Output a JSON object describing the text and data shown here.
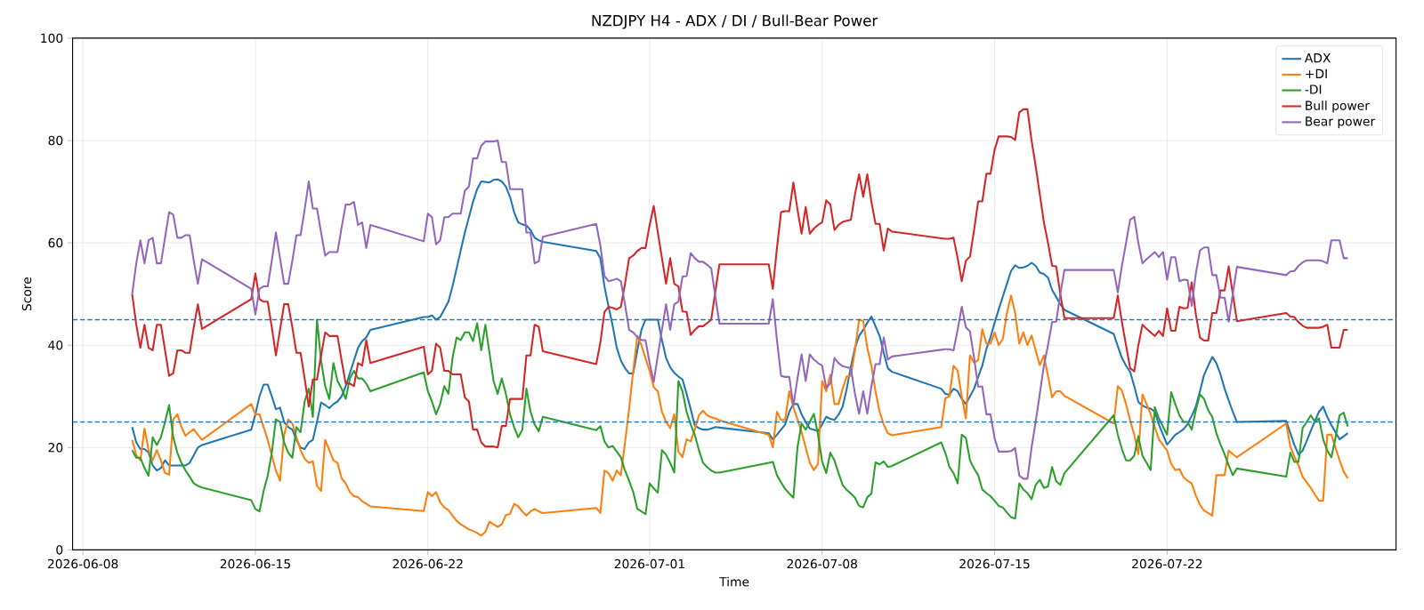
{
  "chart_data": {
    "type": "line",
    "title": "NZDJPY H4 - ADX / DI / Bull-Bear Power",
    "xlabel": "Time",
    "ylabel": "Score",
    "xlim": [
      "2026-06-07T14:00",
      "2026-07-31T07:00"
    ],
    "ylim": [
      0,
      100
    ],
    "xticks": [
      "2026-06-08",
      "2026-06-15",
      "2026-06-22",
      "2026-07-01",
      "2026-07-08",
      "2026-07-15",
      "2026-07-22"
    ],
    "yticks": [
      0,
      20,
      40,
      60,
      80,
      100
    ],
    "grid": true,
    "legend": "top right",
    "line_style": "solid",
    "x": [
      "2026-06-10T00:00",
      "2026-06-10T04:00",
      "2026-06-10T08:00",
      "2026-06-10T12:00",
      "2026-06-10T16:00",
      "2026-06-10T20:00",
      "2026-06-11T00:00",
      "2026-06-11T04:00",
      "2026-06-11T08:00",
      "2026-06-11T12:00",
      "2026-06-11T16:00",
      "2026-06-11T20:00",
      "2026-06-12T00:00",
      "2026-06-12T04:00",
      "2026-06-12T08:00",
      "2026-06-12T12:00",
      "2026-06-12T16:00",
      "2026-06-12T20:00",
      "2026-06-14T20:00",
      "2026-06-15T00:00",
      "2026-06-15T04:00",
      "2026-06-15T08:00",
      "2026-06-15T12:00",
      "2026-06-15T16:00",
      "2026-06-15T20:00",
      "2026-06-16T00:00",
      "2026-06-16T04:00",
      "2026-06-16T08:00",
      "2026-06-16T12:00",
      "2026-06-16T16:00",
      "2026-06-16T20:00",
      "2026-06-17T00:00",
      "2026-06-17T04:00",
      "2026-06-17T08:00",
      "2026-06-17T12:00",
      "2026-06-17T16:00",
      "2026-06-17T20:00",
      "2026-06-18T00:00",
      "2026-06-18T04:00",
      "2026-06-18T08:00",
      "2026-06-18T12:00",
      "2026-06-18T16:00",
      "2026-06-18T20:00",
      "2026-06-19T00:00",
      "2026-06-19T04:00",
      "2026-06-19T08:00",
      "2026-06-19T12:00",
      "2026-06-19T16:00",
      "2026-06-21T20:00",
      "2026-06-22T00:00",
      "2026-06-22T04:00",
      "2026-06-22T08:00",
      "2026-06-22T12:00",
      "2026-06-22T16:00",
      "2026-06-22T20:00",
      "2026-06-23T00:00",
      "2026-06-23T04:00",
      "2026-06-23T08:00",
      "2026-06-23T12:00",
      "2026-06-23T16:00",
      "2026-06-23T20:00",
      "2026-06-24T00:00",
      "2026-06-24T04:00",
      "2026-06-24T08:00",
      "2026-06-24T12:00",
      "2026-06-24T16:00",
      "2026-06-24T20:00",
      "2026-06-25T00:00",
      "2026-06-25T04:00",
      "2026-06-25T08:00",
      "2026-06-25T12:00",
      "2026-06-25T16:00",
      "2026-06-25T20:00",
      "2026-06-26T00:00",
      "2026-06-26T04:00",
      "2026-06-26T08:00",
      "2026-06-26T12:00",
      "2026-06-26T16:00",
      "2026-06-28T20:00",
      "2026-06-29T00:00",
      "2026-06-29T04:00",
      "2026-06-29T08:00",
      "2026-06-29T12:00",
      "2026-06-29T16:00",
      "2026-06-29T20:00",
      "2026-06-30T00:00",
      "2026-06-30T04:00",
      "2026-06-30T08:00",
      "2026-06-30T12:00",
      "2026-06-30T16:00",
      "2026-06-30T20:00",
      "2026-07-01T00:00",
      "2026-07-01T04:00",
      "2026-07-01T08:00",
      "2026-07-01T12:00",
      "2026-07-01T16:00",
      "2026-07-01T20:00",
      "2026-07-02T00:00",
      "2026-07-02T04:00",
      "2026-07-02T08:00",
      "2026-07-02T12:00",
      "2026-07-02T16:00",
      "2026-07-02T20:00",
      "2026-07-03T00:00",
      "2026-07-03T04:00",
      "2026-07-03T08:00",
      "2026-07-03T12:00",
      "2026-07-03T16:00",
      "2026-07-03T20:00",
      "2026-07-05T20:00",
      "2026-07-06T00:00",
      "2026-07-06T04:00",
      "2026-07-06T08:00",
      "2026-07-06T12:00",
      "2026-07-06T16:00",
      "2026-07-06T20:00",
      "2026-07-07T00:00",
      "2026-07-07T04:00",
      "2026-07-07T08:00",
      "2026-07-07T12:00",
      "2026-07-07T16:00",
      "2026-07-07T20:00",
      "2026-07-08T00:00",
      "2026-07-08T04:00",
      "2026-07-08T08:00",
      "2026-07-08T12:00",
      "2026-07-08T16:00",
      "2026-07-08T20:00",
      "2026-07-09T00:00",
      "2026-07-09T04:00",
      "2026-07-09T08:00",
      "2026-07-09T12:00",
      "2026-07-09T16:00",
      "2026-07-09T20:00",
      "2026-07-10T00:00",
      "2026-07-10T04:00",
      "2026-07-10T08:00",
      "2026-07-10T12:00",
      "2026-07-10T16:00",
      "2026-07-10T20:00",
      "2026-07-12T20:00",
      "2026-07-13T00:00",
      "2026-07-13T04:00",
      "2026-07-13T08:00",
      "2026-07-13T12:00",
      "2026-07-13T16:00",
      "2026-07-13T20:00",
      "2026-07-14T00:00",
      "2026-07-14T04:00",
      "2026-07-14T08:00",
      "2026-07-14T12:00",
      "2026-07-14T16:00",
      "2026-07-14T20:00",
      "2026-07-15T00:00",
      "2026-07-15T04:00",
      "2026-07-15T08:00",
      "2026-07-15T12:00",
      "2026-07-15T16:00",
      "2026-07-15T20:00",
      "2026-07-16T00:00",
      "2026-07-16T04:00",
      "2026-07-16T08:00",
      "2026-07-16T12:00",
      "2026-07-16T16:00",
      "2026-07-16T20:00",
      "2026-07-17T00:00",
      "2026-07-17T04:00",
      "2026-07-17T08:00",
      "2026-07-17T12:00",
      "2026-07-17T16:00",
      "2026-07-17T20:00",
      "2026-07-19T20:00",
      "2026-07-20T00:00",
      "2026-07-20T04:00",
      "2026-07-20T08:00",
      "2026-07-20T12:00",
      "2026-07-20T16:00",
      "2026-07-20T20:00",
      "2026-07-21T00:00",
      "2026-07-21T04:00",
      "2026-07-21T08:00",
      "2026-07-21T12:00",
      "2026-07-21T16:00",
      "2026-07-21T20:00",
      "2026-07-22T00:00",
      "2026-07-22T04:00",
      "2026-07-22T08:00",
      "2026-07-22T12:00",
      "2026-07-22T16:00",
      "2026-07-22T20:00",
      "2026-07-23T00:00",
      "2026-07-23T04:00",
      "2026-07-23T08:00",
      "2026-07-23T12:00",
      "2026-07-23T16:00",
      "2026-07-23T20:00",
      "2026-07-24T00:00",
      "2026-07-24T04:00",
      "2026-07-24T08:00",
      "2026-07-24T12:00",
      "2026-07-24T16:00",
      "2026-07-24T20:00",
      "2026-07-26T20:00",
      "2026-07-27T00:00",
      "2026-07-27T04:00",
      "2026-07-27T08:00",
      "2026-07-27T12:00",
      "2026-07-27T16:00",
      "2026-07-27T20:00",
      "2026-07-28T00:00",
      "2026-07-28T04:00",
      "2026-07-28T08:00",
      "2026-07-28T12:00",
      "2026-07-28T16:00",
      "2026-07-28T20:00",
      "2026-07-29T00:00",
      "2026-07-29T04:00",
      "2026-07-29T08:00"
    ],
    "series": [
      {
        "name": "ADX",
        "color": "#1f77b4",
        "values": [
          24,
          21,
          19.7,
          19.7,
          19,
          16.5,
          15.5,
          16,
          17.5,
          16.5,
          16.5,
          16.5,
          16.5,
          16.5,
          17,
          18.5,
          20,
          20.5,
          23.5,
          26.5,
          30,
          32.3,
          32.3,
          30,
          27.5,
          27.8,
          25,
          24,
          23.5,
          21.5,
          20,
          19.7,
          21,
          21.5,
          25,
          28.8,
          28.3,
          27.7,
          28.5,
          29,
          30,
          32,
          34.5,
          37,
          39.5,
          40.8,
          41.5,
          43,
          45.5,
          45.5,
          45.8,
          45,
          45.5,
          47,
          48.5,
          51.5,
          55,
          58.5,
          62,
          65,
          68,
          70.5,
          72,
          71.9,
          71.8,
          72.3,
          72.4,
          72,
          71,
          69,
          66,
          64,
          63.6,
          63.4,
          62.5,
          61,
          60.5,
          60.2,
          58.4,
          57,
          51.5,
          47.5,
          43.8,
          39.5,
          37,
          35.5,
          34.5,
          34.5,
          39,
          43,
          45,
          45,
          45,
          45,
          41,
          37.5,
          35.7,
          34.6,
          33.9,
          33.3,
          30.5,
          27.5,
          24.3,
          23.8,
          23.5,
          23.5,
          23.7,
          24,
          23.9,
          22.8,
          21.6,
          22.5,
          23.5,
          24.5,
          27,
          28.5,
          28.5,
          26.5,
          25,
          23.7,
          23.5,
          23.2,
          24.5,
          26,
          25.6,
          25.4,
          26.4,
          28,
          31.5,
          35.8,
          39.5,
          41.8,
          43,
          44.4,
          45.6,
          43.7,
          41.8,
          38.5,
          35.5,
          34.8,
          31.5,
          30.5,
          30.3,
          31.5,
          31,
          29.5,
          28.5,
          30,
          31.5,
          33.8,
          36,
          39.3,
          41.5,
          44.4,
          47,
          49.5,
          52,
          54.5,
          55.6,
          55.1,
          55.2,
          55.5,
          56.1,
          55.5,
          54.2,
          53.9,
          53.2,
          50.8,
          49.4,
          48,
          46.9,
          42.2,
          39.8,
          37.5,
          36,
          34.8,
          32,
          28.9,
          28.2,
          27.8,
          27.6,
          27,
          24.5,
          22.5,
          20.6,
          21.5,
          22.5,
          23,
          23.6,
          24.6,
          26.2,
          28,
          31,
          34.2,
          36,
          37.7,
          36.5,
          34.3,
          31.5,
          29.2,
          27,
          25,
          25.2,
          22.8,
          20.5,
          18.6,
          19.4,
          21.3,
          23.3,
          25.2,
          27,
          28,
          26,
          24.4,
          23,
          21.6,
          22.2,
          22.8
        ]
      },
      {
        "name": "+DI",
        "color": "#ff7f0e",
        "values": [
          21.5,
          18.5,
          17.5,
          23.7,
          19.5,
          17.5,
          19.5,
          17.5,
          15,
          14.7,
          25.5,
          26.5,
          24,
          22.3,
          23,
          23.6,
          22.5,
          21.5,
          28.5,
          26.5,
          26.5,
          24,
          21.5,
          18.5,
          15.5,
          13.5,
          22.5,
          25.5,
          24.7,
          22,
          19.5,
          17.8,
          17,
          17.3,
          12.5,
          11.5,
          21.5,
          19.5,
          17.5,
          17,
          14,
          13,
          11.3,
          10.5,
          10.3,
          9.5,
          9,
          8.5,
          7.6,
          11.3,
          10.5,
          11.3,
          9.3,
          8.3,
          7.8,
          6.7,
          5.7,
          5,
          4.5,
          4,
          3.7,
          3.3,
          2.8,
          3.5,
          5.5,
          5,
          4.5,
          5,
          6.8,
          7,
          9,
          8.5,
          7.5,
          6.7,
          7.5,
          8,
          7.5,
          7.2,
          8.2,
          7.2,
          15.5,
          15,
          13.5,
          15.5,
          14.6,
          21,
          27.5,
          35,
          41.8,
          40,
          37.4,
          35,
          31.8,
          31,
          27,
          25,
          23.8,
          26.5,
          19.2,
          18.1,
          21.6,
          21.2,
          23.5,
          26.3,
          27.2,
          26.3,
          25.9,
          25.7,
          25.3,
          22.5,
          20,
          27,
          25.4,
          25.4,
          31,
          27.9,
          25.5,
          23,
          20,
          17,
          15.6,
          16.8,
          33,
          31,
          34.2,
          28.5,
          28.5,
          31.5,
          33.9,
          34,
          39,
          45,
          44.7,
          39.5,
          36,
          31,
          27,
          24.5,
          22.8,
          22.4,
          24,
          29.6,
          30,
          36,
          35,
          30,
          25.7,
          38,
          36.6,
          37.1,
          43.1,
          40.3,
          40.3,
          42.5,
          40,
          41.2,
          46.3,
          49.7,
          46.3,
          40.3,
          42.5,
          40,
          41.9,
          39,
          36.1,
          38,
          34,
          29.8,
          31,
          31,
          30.1,
          24.7,
          32,
          31.1,
          28.5,
          25.3,
          22.5,
          18.7,
          30.4,
          28.5,
          26.5,
          24,
          21.6,
          20.5,
          19.4,
          16.8,
          15.6,
          15.8,
          14.2,
          13.5,
          13,
          10.6,
          8.8,
          7.7,
          7.2,
          6.7,
          14.6,
          14.6,
          14.6,
          19.4,
          18.7,
          18.1,
          24.7,
          20.2,
          18.2,
          16.5,
          14.3,
          13.2,
          12.1,
          10.8,
          9.6,
          9.6,
          22.5,
          22.5,
          20,
          17.5,
          15.3,
          14
        ]
      },
      {
        "name": "-DI",
        "color": "#2ca02c",
        "values": [
          19.5,
          18,
          18,
          16,
          14.5,
          22,
          20.5,
          22,
          25,
          28.3,
          22,
          19,
          17,
          15.5,
          14.3,
          13,
          12.5,
          12.2,
          9.7,
          8,
          7.5,
          11.5,
          14.5,
          19,
          25.5,
          25,
          21,
          19,
          18,
          24,
          23,
          29,
          31.5,
          26,
          45,
          37,
          32,
          29.5,
          36.5,
          33,
          31.5,
          29.5,
          33.5,
          35,
          33.5,
          33.5,
          32.5,
          31,
          34.7,
          31,
          29,
          26.5,
          28.5,
          32,
          30.5,
          37.5,
          41.5,
          41,
          42.5,
          42.5,
          40.8,
          44.3,
          39,
          44,
          38.5,
          33,
          30.5,
          33.5,
          30.5,
          26.5,
          24,
          22,
          23.5,
          31.5,
          27,
          24.5,
          23.2,
          26,
          23.4,
          24.2,
          21.2,
          20,
          20.3,
          19.2,
          18.1,
          15.5,
          13.5,
          11.3,
          8,
          7.5,
          7,
          13,
          12,
          11.2,
          19.5,
          18.6,
          17,
          15.1,
          33,
          31,
          27,
          24.5,
          22.5,
          19.5,
          17,
          16.2,
          15.5,
          15.1,
          15.1,
          17,
          17.2,
          14.6,
          13.2,
          11.9,
          11,
          10.2,
          20,
          24.7,
          23.5,
          25,
          26.6,
          22.5,
          17.3,
          15,
          19,
          17.5,
          15,
          12.7,
          11.7,
          11,
          10.2,
          8.6,
          8.3,
          10.3,
          11,
          17.1,
          16.7,
          17.3,
          16.2,
          16.4,
          21,
          19,
          16.2,
          15,
          13,
          22.5,
          21.9,
          17.5,
          15.9,
          14.6,
          11.8,
          11.1,
          10.5,
          9.6,
          8.6,
          8.3,
          7.3,
          6.4,
          6.1,
          13,
          11.8,
          11.1,
          9.9,
          12.7,
          13.7,
          12.1,
          12.4,
          16.2,
          13.4,
          12.7,
          15,
          26.3,
          22.5,
          19.7,
          17.5,
          17.5,
          18.4,
          22.2,
          18.4,
          17,
          15.6,
          27.9,
          25.7,
          24.1,
          22.5,
          30.8,
          28.5,
          26.3,
          25,
          25,
          23.5,
          27.3,
          30.4,
          29.5,
          27.3,
          26,
          22.8,
          20.6,
          18.7,
          16.5,
          14.6,
          15.9,
          14.3,
          19,
          17.2,
          17.2,
          23.8,
          25,
          26.3,
          25,
          25.7,
          21.6,
          19.4,
          18.1,
          21.9,
          26.3,
          26.8,
          24.1
        ]
      },
      {
        "name": "Bull power",
        "color": "#d62728",
        "values": [
          50,
          44,
          39.5,
          44,
          39.5,
          39,
          44,
          44,
          39,
          34,
          34.5,
          39,
          39,
          38.5,
          38.5,
          43.5,
          48,
          43.2,
          49,
          54,
          49,
          48.5,
          48.5,
          43.5,
          38,
          43,
          48,
          48,
          43.5,
          38.5,
          38.5,
          33.5,
          28,
          33.3,
          33.3,
          38,
          42.5,
          41.8,
          41.8,
          41.8,
          37,
          32.5,
          32.5,
          32,
          36.5,
          36,
          41,
          36.5,
          39.7,
          34.3,
          35,
          40.3,
          39.5,
          35,
          35,
          34.3,
          34.3,
          34.3,
          29.8,
          29,
          23.5,
          23.5,
          21,
          20.2,
          20.2,
          20.2,
          20,
          24.2,
          24.2,
          29.5,
          29.5,
          29.5,
          29.5,
          38,
          38,
          44,
          43.6,
          38.8,
          36.3,
          40.5,
          46.5,
          47.5,
          47.3,
          47,
          47.5,
          52,
          57,
          57.5,
          58.4,
          59,
          59,
          63.5,
          67.2,
          62,
          57,
          52,
          57,
          52,
          51.5,
          46.6,
          46.5,
          42,
          43,
          43.7,
          43.7,
          44.3,
          45,
          50.5,
          55.8,
          55.8,
          51,
          59,
          66,
          66.2,
          66.2,
          71.8,
          66.5,
          61.8,
          67,
          61.8,
          62.8,
          63.5,
          64,
          68.3,
          67.5,
          62.5,
          63.5,
          64.1,
          64.3,
          64.5,
          69.5,
          73.4,
          69,
          73.4,
          68,
          63.7,
          63.7,
          58.5,
          62.8,
          62.2,
          60.9,
          60.8,
          60.8,
          61,
          57,
          52.5,
          56.5,
          57.3,
          62.5,
          68.1,
          68.1,
          73.5,
          73.5,
          78.2,
          80.8,
          80.8,
          80.8,
          80.7,
          80.1,
          85.5,
          86.1,
          86.1,
          80,
          75,
          69.5,
          64,
          60,
          55.5,
          55.4,
          50,
          45.3,
          45.3,
          49.7,
          44.5,
          40,
          35.5,
          34.9,
          40,
          44,
          43.2,
          42.5,
          41.8,
          42.8,
          41.8,
          47.2,
          42.8,
          42.8,
          47.5,
          47.2,
          47.3,
          52.3,
          46,
          41.5,
          40.9,
          40.9,
          46.3,
          46.3,
          50.7,
          50.7,
          55.4,
          50,
          44.7,
          46.3,
          45.6,
          45.5,
          44.5,
          43.8,
          43.4,
          43.4,
          43.4,
          43.4,
          43.6,
          44,
          39.5,
          39.5,
          39.5,
          43,
          43
        ]
      },
      {
        "name": "Bear power",
        "color": "#9467bd",
        "values": [
          50,
          56,
          60.5,
          56,
          60.5,
          61,
          56,
          56,
          61,
          66,
          65.5,
          61,
          61,
          61.5,
          61.5,
          56.5,
          52,
          56.8,
          51,
          46,
          51,
          51.5,
          51.5,
          56.5,
          62,
          57,
          52,
          52,
          56.5,
          61.5,
          61.5,
          66.5,
          72,
          66.7,
          66.7,
          62,
          57.5,
          58.2,
          58.2,
          58.2,
          63,
          67.5,
          67.5,
          68,
          63.5,
          64,
          59,
          63.5,
          60.3,
          65.7,
          65,
          59.7,
          60.5,
          65,
          65,
          65.7,
          65.7,
          65.7,
          70.2,
          71,
          76.5,
          76.5,
          79,
          79.8,
          79.8,
          79.8,
          80,
          75.8,
          75.8,
          70.5,
          70.5,
          70.5,
          70.5,
          62,
          62,
          56,
          56.4,
          61.2,
          63.7,
          59.5,
          53.5,
          52.5,
          52.7,
          53,
          52.5,
          48,
          43,
          42.5,
          41.6,
          41,
          41,
          36.5,
          32.8,
          38,
          43,
          48,
          43,
          48,
          48.5,
          53.4,
          53.5,
          58,
          57,
          56.3,
          56.3,
          55.7,
          55,
          49.5,
          44.2,
          44.2,
          49,
          41,
          34,
          33.8,
          33.8,
          28.2,
          33.5,
          38.2,
          33,
          38.2,
          37.2,
          36.5,
          36,
          31.7,
          32.5,
          37.5,
          36.5,
          35.9,
          35.7,
          35.5,
          30.5,
          26.6,
          31,
          26.6,
          32,
          36.3,
          36.3,
          41.5,
          37.2,
          37.8,
          39.1,
          39.2,
          39.2,
          39,
          43,
          47.5,
          43.5,
          42.7,
          37.5,
          31.9,
          31.9,
          26.5,
          26.5,
          21.8,
          19.2,
          19.2,
          19.2,
          19.3,
          19.9,
          14.5,
          13.9,
          13.9,
          20,
          25,
          30.5,
          36,
          40,
          44.5,
          44.6,
          50,
          54.7,
          54.7,
          50.3,
          55.5,
          60,
          64.5,
          65.1,
          60,
          56,
          56.8,
          57.5,
          58.2,
          57.2,
          58.2,
          52.8,
          57.2,
          57.2,
          52.5,
          52.8,
          52.7,
          47.7,
          54,
          58.5,
          59.1,
          59.1,
          53.7,
          53.7,
          49.3,
          49.3,
          44.6,
          50,
          55.3,
          53.7,
          54.4,
          54.5,
          55.5,
          56.2,
          56.6,
          56.6,
          56.6,
          56.6,
          56.4,
          56,
          60.5,
          60.5,
          60.5,
          57,
          57
        ]
      }
    ],
    "ref_lines": [
      {
        "axis": "y",
        "value": 45,
        "color": "#1f77b4",
        "line_style": "dashed"
      },
      {
        "axis": "y",
        "value": 25,
        "color": "#1f77b4",
        "line_style": "dashed"
      }
    ]
  }
}
